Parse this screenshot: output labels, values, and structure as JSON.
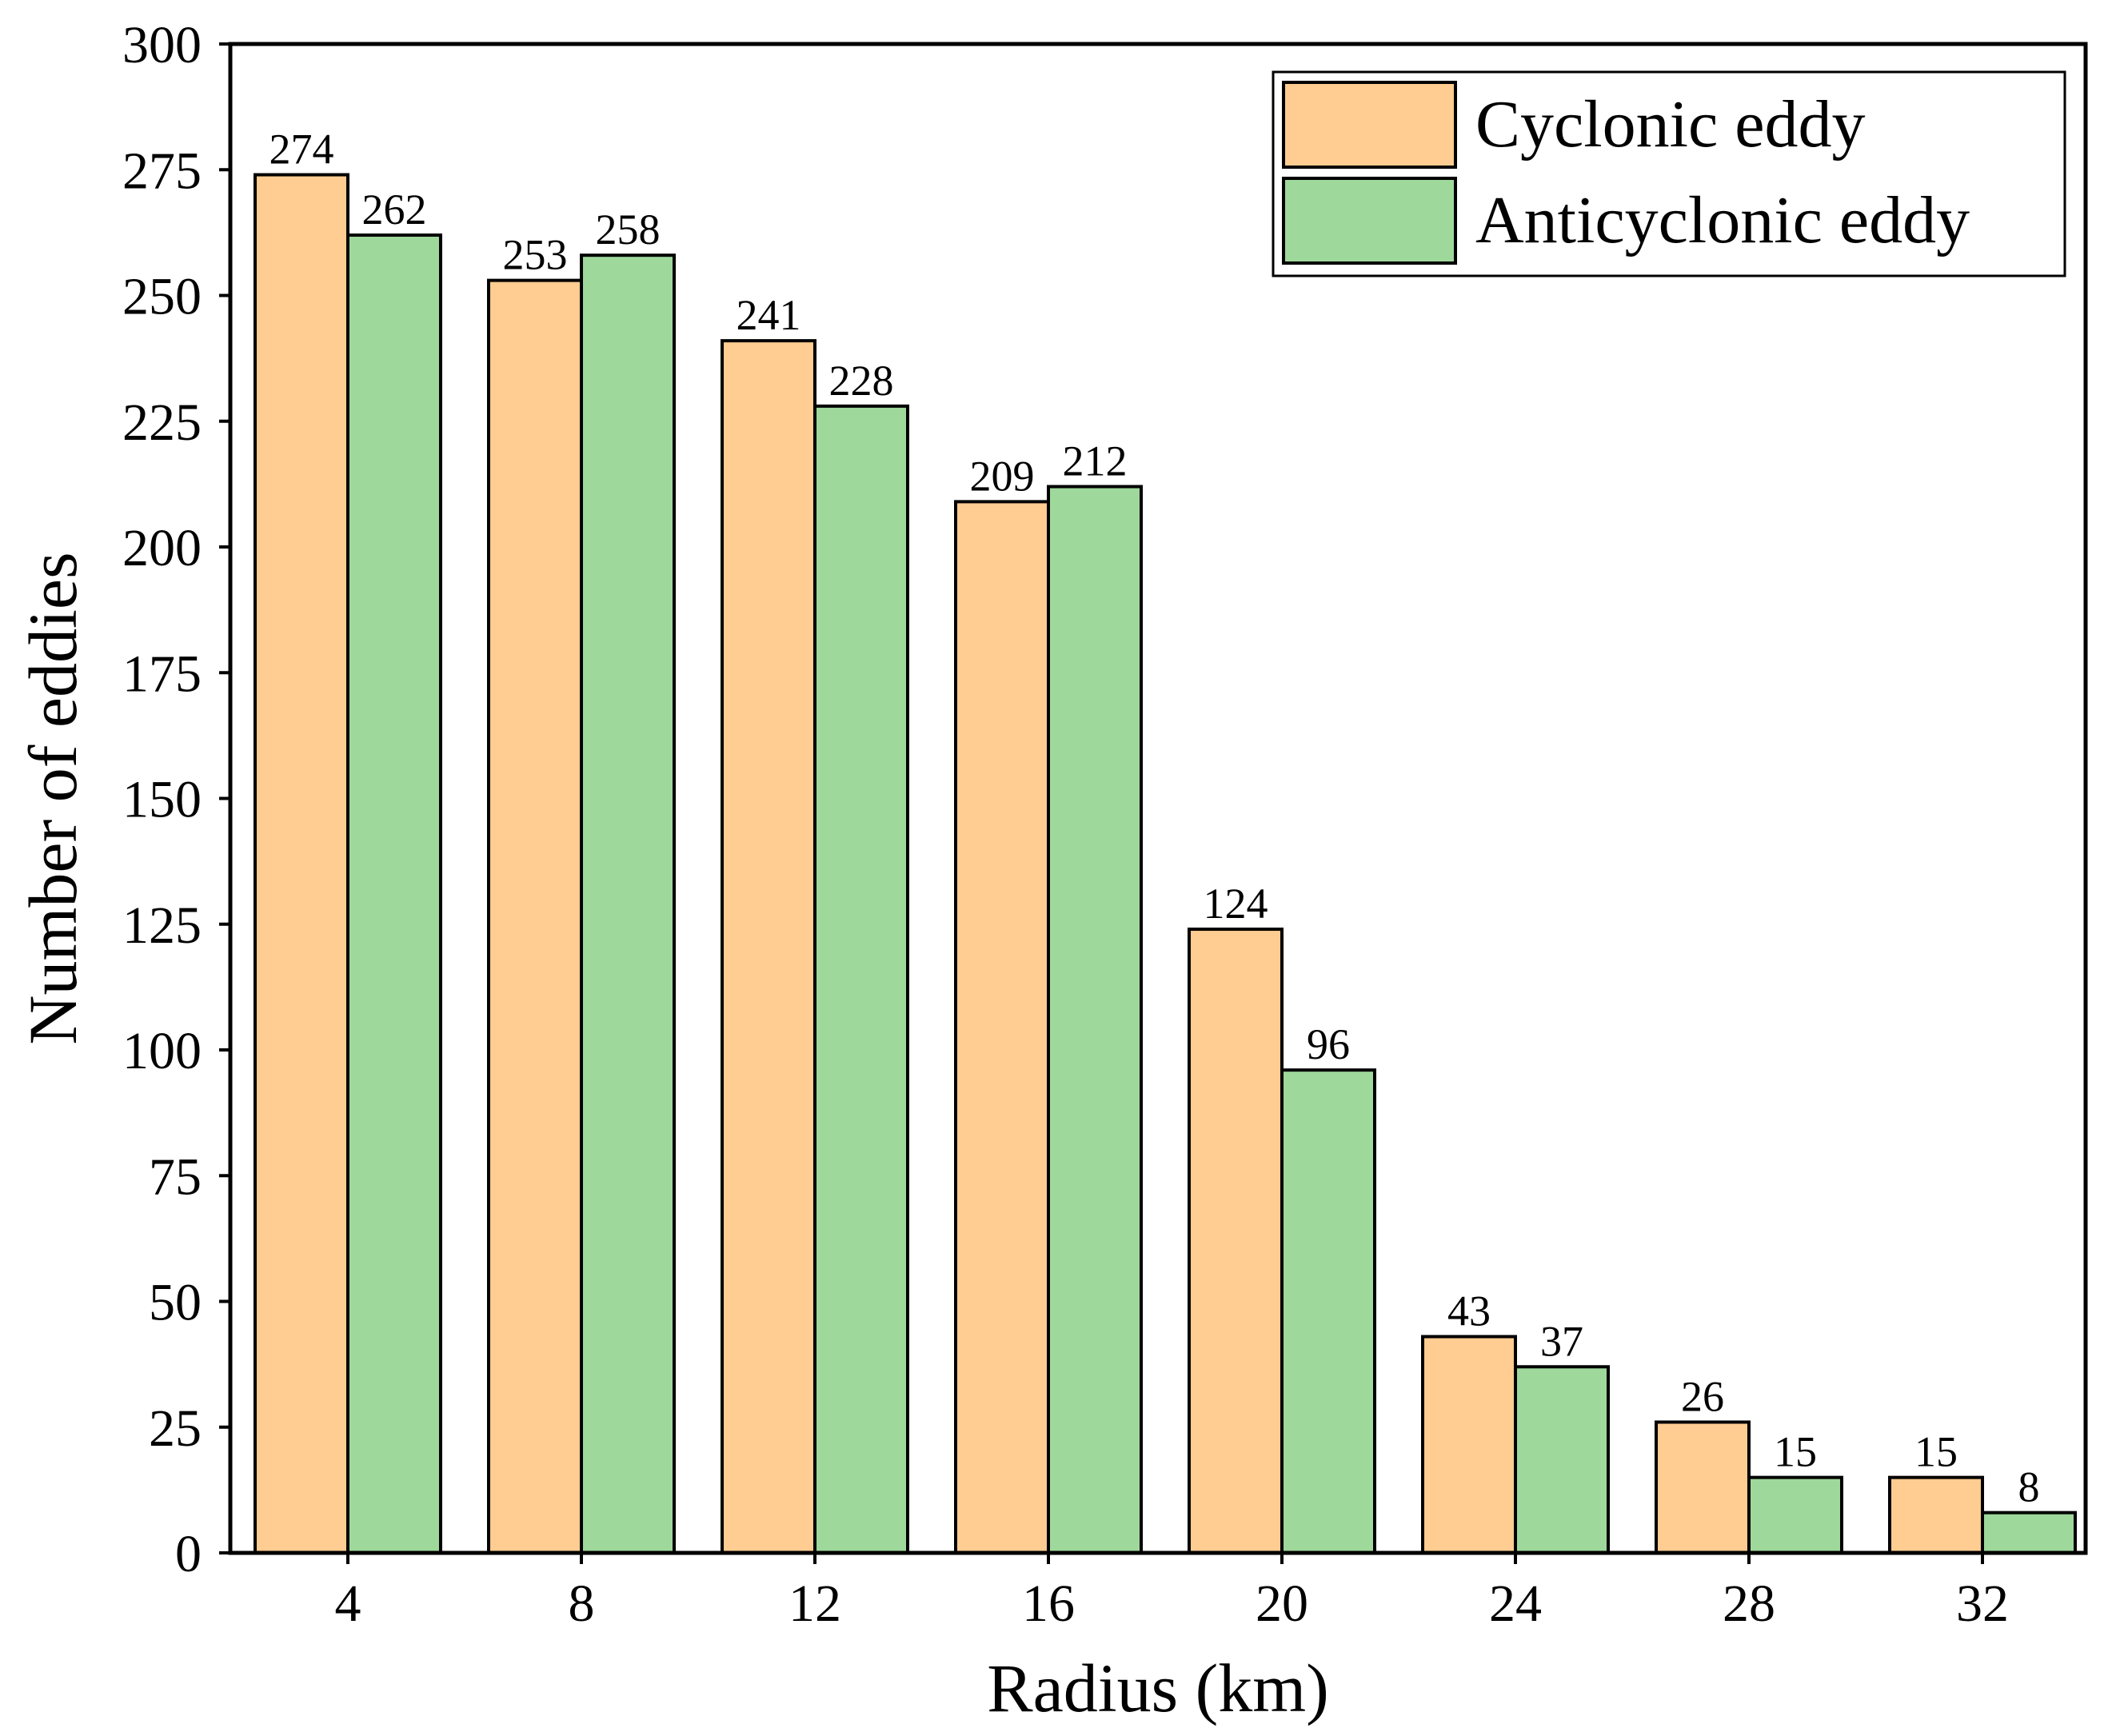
{
  "chart_data": {
    "type": "bar",
    "categories": [
      "4",
      "8",
      "12",
      "16",
      "20",
      "24",
      "28",
      "32"
    ],
    "series": [
      {
        "name": "Cyclonic eddy",
        "color": "#ffcc91",
        "values": [
          274,
          253,
          241,
          209,
          124,
          43,
          26,
          15
        ]
      },
      {
        "name": "Anticyclonic eddy",
        "color": "#9ed89b",
        "values": [
          262,
          258,
          228,
          212,
          96,
          37,
          15,
          8
        ]
      }
    ],
    "title": "",
    "xlabel": "Radius (km)",
    "ylabel": "Number of eddies",
    "ylim": [
      0,
      300
    ],
    "yticks": [
      0,
      25,
      50,
      75,
      100,
      125,
      150,
      175,
      200,
      225,
      250,
      275,
      300
    ],
    "grid": false,
    "legend_position": "top-right",
    "data_labels": true
  }
}
